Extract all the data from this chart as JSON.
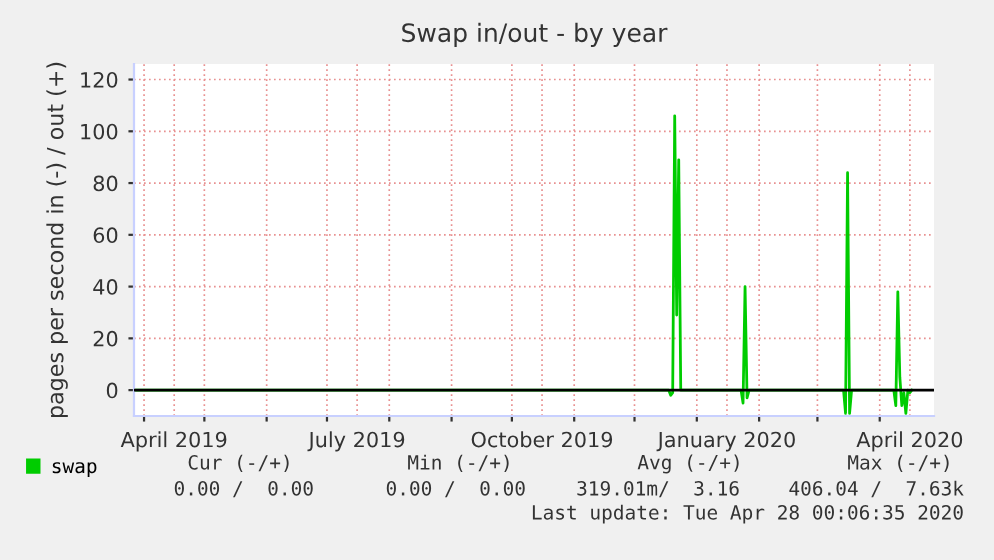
{
  "chart_data": {
    "type": "line",
    "title": "Swap in/out - by year",
    "ylabel": "pages per second in (-) / out (+)",
    "x": [
      "2019-03-27",
      "2019-12-18",
      "2019-12-19",
      "2019-12-20",
      "2019-12-21",
      "2019-12-22",
      "2019-12-23",
      "2019-12-24",
      "2020-01-23",
      "2020-01-24",
      "2020-01-25",
      "2020-01-26",
      "2020-01-27",
      "2020-03-14",
      "2020-03-15",
      "2020-03-16",
      "2020-03-17",
      "2020-03-18",
      "2020-04-08",
      "2020-04-09",
      "2020-04-10",
      "2020-04-11",
      "2020-04-12",
      "2020-04-13",
      "2020-04-14",
      "2020-04-15",
      "2020-04-16",
      "2020-04-17"
    ],
    "series": [
      {
        "name": "swap",
        "color": "#00cc00",
        "values": [
          0,
          0,
          -2,
          -1,
          106,
          29,
          89,
          0,
          0,
          -5,
          40,
          -3,
          0,
          0,
          -9,
          84,
          -9,
          0,
          0,
          -6,
          38,
          5,
          -6,
          -1,
          -9,
          0,
          -1,
          0
        ]
      }
    ],
    "xlim": [
      "2019-03-27",
      "2020-04-28"
    ],
    "xticks": [
      {
        "value": "2019-04-01",
        "label": null
      },
      {
        "value": "2019-04-16",
        "label": "April 2019"
      },
      {
        "value": "2019-05-01",
        "label": null
      },
      {
        "value": "2019-06-01",
        "label": null
      },
      {
        "value": "2019-07-01",
        "label": null
      },
      {
        "value": "2019-07-16",
        "label": "July 2019"
      },
      {
        "value": "2019-08-01",
        "label": null
      },
      {
        "value": "2019-09-01",
        "label": null
      },
      {
        "value": "2019-10-01",
        "label": null
      },
      {
        "value": "2019-10-16",
        "label": "October 2019"
      },
      {
        "value": "2019-11-01",
        "label": null
      },
      {
        "value": "2019-12-01",
        "label": null
      },
      {
        "value": "2020-01-01",
        "label": null
      },
      {
        "value": "2020-01-16",
        "label": "January 2020"
      },
      {
        "value": "2020-02-01",
        "label": null
      },
      {
        "value": "2020-03-01",
        "label": null
      },
      {
        "value": "2020-04-01",
        "label": null
      },
      {
        "value": "2020-04-16",
        "label": "April 2020"
      }
    ],
    "ylim": [
      -10,
      126
    ],
    "yticks": [
      0,
      20,
      40,
      60,
      80,
      100,
      120
    ],
    "ref_lines": [
      {
        "axis": "y",
        "value": 0,
        "color": "#000000"
      }
    ],
    "grid": true,
    "legend": "bottom left",
    "annotations": [
      "Cur (-/+)",
      "Min (-/+)",
      "Avg (-/+)",
      "Max (-/+)",
      "0.00 /  0.00",
      "0.00 /  0.00",
      "319.01m/  3.16",
      "406.04 /  7.63k",
      "Last update: Tue Apr 28 00:06:35 2020"
    ]
  }
}
